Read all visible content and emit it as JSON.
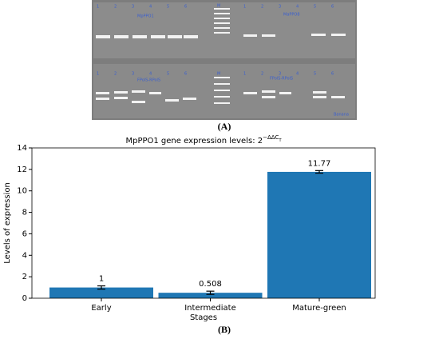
{
  "panel_a": {
    "label": "(A)",
    "lanes": [
      "1",
      "2",
      "3",
      "4",
      "5",
      "6"
    ],
    "marker": "M",
    "gene_top_left": "MpPPO1",
    "gene_top_right": "MaPPO8",
    "primer_bottom_left": "FPolS-RPolS",
    "primer_bottom_right": "FPolS-RPolS",
    "sample": "Banana"
  },
  "chart_data": {
    "type": "bar",
    "panel_label": "(B)",
    "title": "MpPPO1 gene expression levels: 2",
    "title_superscript": "−ΔΔC",
    "title_subscript": "T",
    "xlabel": "Stages",
    "ylabel": "Levels of expression",
    "categories": [
      "Early",
      "Intermediate",
      "Mature-green"
    ],
    "values": [
      1,
      0.508,
      11.77
    ],
    "errors": [
      0.15,
      0.15,
      0.12
    ],
    "color": "#1f77b4",
    "ylim": [
      0,
      14
    ],
    "yticks": [
      0,
      2,
      4,
      6,
      8,
      10,
      12,
      14
    ]
  }
}
